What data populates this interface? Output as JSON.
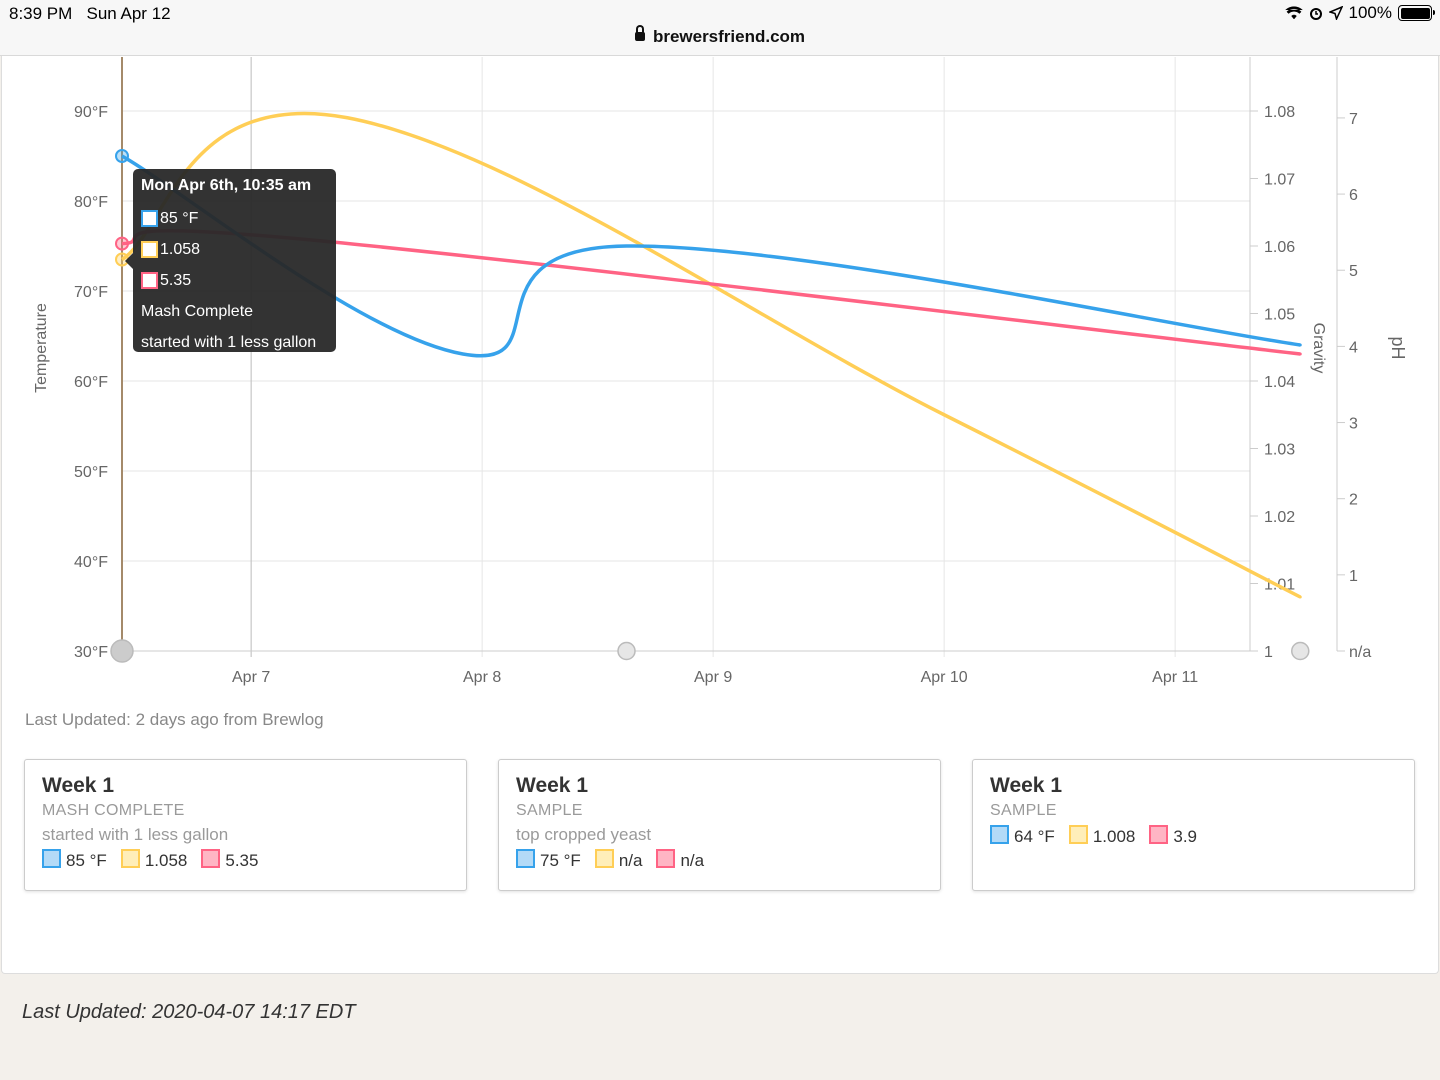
{
  "status_bar": {
    "time": "8:39 PM",
    "date": "Sun Apr 12",
    "battery": "100%"
  },
  "url_bar": {
    "domain": "brewersfriend.com"
  },
  "chart_data": {
    "type": "line",
    "x_tick_labels": [
      "Apr 7",
      "Apr 8",
      "Apr 9",
      "Apr 10",
      "Apr 11"
    ],
    "axes": {
      "temperature": {
        "label": "Temperature",
        "ticks": [
          "90°F",
          "80°F",
          "70°F",
          "60°F",
          "50°F",
          "40°F",
          "30°F"
        ],
        "range": [
          30,
          96
        ]
      },
      "gravity": {
        "label": "Gravity",
        "ticks": [
          "1.08",
          "1.07",
          "1.06",
          "1.05",
          "1.04",
          "1.03",
          "1.02",
          "1.01",
          "1"
        ],
        "range": [
          1.0,
          1.088
        ]
      },
      "ph": {
        "label": "pH",
        "ticks": [
          "7",
          "6",
          "5",
          "4",
          "3",
          "2",
          "1",
          "n/a"
        ],
        "range": [
          0,
          7.8
        ]
      }
    },
    "series": [
      {
        "axis": "temperature",
        "color": "#36a2eb",
        "points": [
          {
            "x": "2020-04-06 10:35",
            "y": 85
          },
          {
            "x": "2020-04-07 22:00",
            "y": 63
          },
          {
            "x": "2020-04-08 15:00",
            "y": 75
          },
          {
            "x": "2020-04-11 13:00",
            "y": 64
          }
        ]
      },
      {
        "axis": "gravity",
        "color": "#ffce56",
        "points": [
          {
            "x": "2020-04-06 10:35",
            "y": 1.058
          },
          {
            "x": "2020-04-07 10:00",
            "y": 1.079
          },
          {
            "x": "2020-04-10 00:00",
            "y": 1.035
          },
          {
            "x": "2020-04-11 13:00",
            "y": 1.008
          }
        ]
      },
      {
        "axis": "ph",
        "color": "#ff6384",
        "points": [
          {
            "x": "2020-04-06 10:35",
            "y": 5.35
          },
          {
            "x": "2020-04-07 06:00",
            "y": 5.4
          },
          {
            "x": "2020-04-11 13:00",
            "y": 3.9
          }
        ]
      }
    ],
    "event_markers": [
      "2020-04-06 10:35",
      "2020-04-08 15:00",
      "2020-04-11 13:00"
    ],
    "legend": "none",
    "grid": true
  },
  "tooltip": {
    "title": "Mon Apr 6th, 10:35 am",
    "temperature": "85 °F",
    "gravity": "1.058",
    "ph": "5.35",
    "type": "Mash Complete",
    "note": "started with 1 less gallon"
  },
  "last_updated_line": "Last Updated: 2 days ago from Brewlog",
  "cards": [
    {
      "title": "Week 1",
      "type": "MASH COMPLETE",
      "note": "started with 1 less gallon",
      "temp": "85 °F",
      "gravity": "1.058",
      "ph": "5.35"
    },
    {
      "title": "Week 1",
      "type": "SAMPLE",
      "note": "top cropped yeast",
      "temp": "75 °F",
      "gravity": "n/a",
      "ph": "n/a"
    },
    {
      "title": "Week 1",
      "type": "SAMPLE",
      "note": "",
      "temp": "64 °F",
      "gravity": "1.008",
      "ph": "3.9"
    }
  ],
  "footer": "Last Updated: 2020-04-07 14:17 EDT"
}
